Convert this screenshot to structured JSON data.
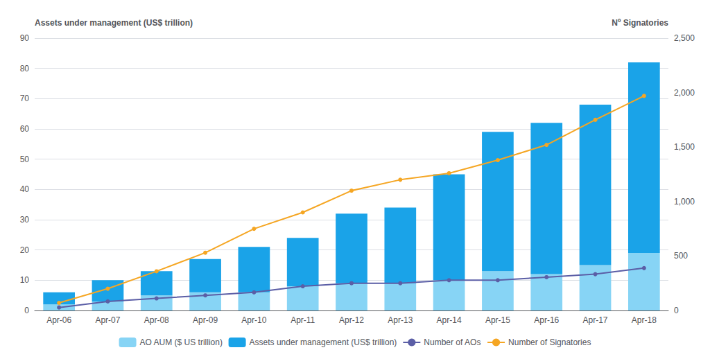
{
  "chart_data": {
    "type": "bar",
    "stacked": true,
    "grid": true,
    "legend": "bottom",
    "categories": [
      "Apr-06",
      "Apr-07",
      "Apr-08",
      "Apr-09",
      "Apr-10",
      "Apr-11",
      "Apr-12",
      "Apr-13",
      "Apr-14",
      "Apr-15",
      "Apr-16",
      "Apr-17",
      "Apr-18"
    ],
    "ylabel": "Assets under management (US$ trillion)",
    "y2label": "Nº Signatories",
    "ylim": [
      0,
      90
    ],
    "yticks": [
      0,
      10,
      20,
      30,
      40,
      50,
      60,
      70,
      80,
      90
    ],
    "y2lim": [
      0,
      2500
    ],
    "y2ticks": [
      0,
      500,
      1000,
      1500,
      2000,
      2500
    ],
    "series": [
      {
        "name": "AO AUM ($ US trillion)",
        "type": "bar",
        "color": "#87d4f5",
        "values": [
          2,
          3,
          5,
          6,
          6,
          8,
          9,
          9,
          10,
          13,
          12,
          15,
          19
        ]
      },
      {
        "name": "Assets under management (US$ trillion)",
        "type": "bar",
        "color": "#1aa3e8",
        "values": [
          4,
          7,
          8,
          11,
          15,
          16,
          23,
          25,
          35,
          46,
          50,
          53,
          63
        ]
      },
      {
        "name": "Number of AOs",
        "type": "line",
        "marker": "circle",
        "color": "#5b5ea6",
        "values": [
          1,
          3,
          4,
          5,
          6,
          8,
          9,
          9,
          10,
          10,
          11,
          12,
          14
        ]
      },
      {
        "name": "Number of Signatories",
        "type": "line",
        "marker": "circle",
        "color": "#f5a623",
        "axis": "y2",
        "values": [
          70,
          200,
          360,
          530,
          750,
          900,
          1100,
          1200,
          1260,
          1380,
          1520,
          1750,
          1970
        ]
      }
    ]
  }
}
